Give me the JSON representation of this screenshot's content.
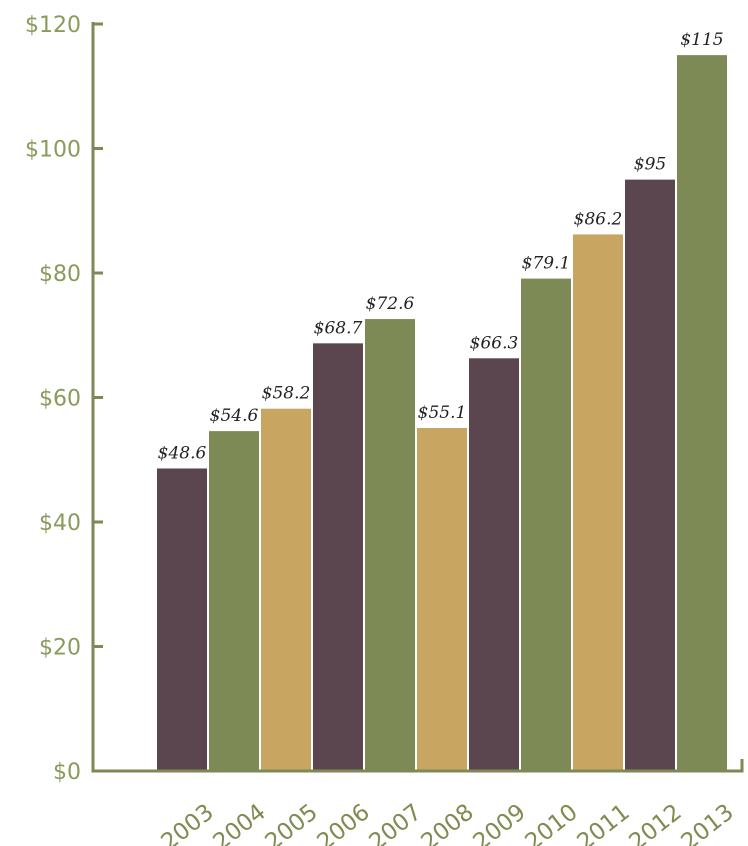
{
  "chart_data": {
    "type": "bar",
    "title": "",
    "xlabel": "",
    "ylabel": "",
    "categories": [
      "2003",
      "2004",
      "2005",
      "2006",
      "2007",
      "2008",
      "2009",
      "2010",
      "2011",
      "2012",
      "2013"
    ],
    "values": [
      48.6,
      54.6,
      58.2,
      68.7,
      72.6,
      55.1,
      66.3,
      79.1,
      86.2,
      95,
      115
    ],
    "data_labels": [
      "$48.6",
      "$54.6",
      "$58.2",
      "$68.7",
      "$72.6",
      "$55.1",
      "$66.3",
      "$79.1",
      "$86.2",
      "$95",
      "$115"
    ],
    "bar_colors": [
      "#5b4650",
      "#7e8a55",
      "#c9a562",
      "#5b4650",
      "#7e8a55",
      "#c9a562",
      "#5b4650",
      "#7e8a55",
      "#c9a562",
      "#5b4650",
      "#7e8a55"
    ],
    "ylim": [
      0,
      120
    ],
    "yticks": [
      0,
      20,
      40,
      60,
      80,
      100,
      120
    ],
    "ytick_labels": [
      "$0",
      "$20",
      "$40",
      "$60",
      "$80",
      "$100",
      "$120"
    ],
    "axis_color": "#7e8a55",
    "grid": false,
    "legend": "none"
  }
}
